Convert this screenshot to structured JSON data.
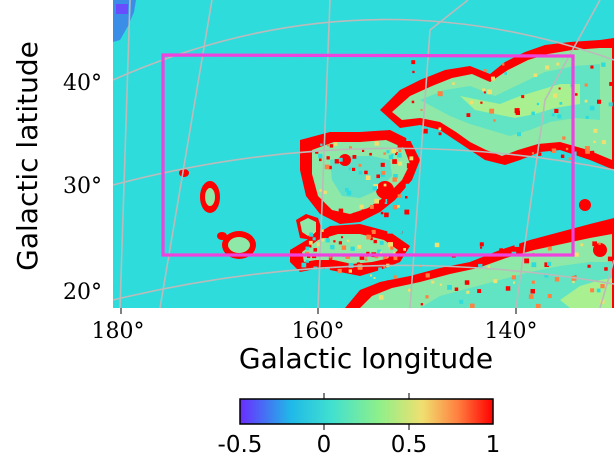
{
  "chart_data": {
    "type": "heatmap",
    "title": "",
    "xlabel": "Galactic longitude",
    "ylabel": "Galactic latitude",
    "x_ticks": [
      {
        "value": 180,
        "label": "180°"
      },
      {
        "value": 160,
        "label": "160°"
      },
      {
        "value": 140,
        "label": "140°"
      }
    ],
    "y_ticks": [
      {
        "value": 40,
        "label": "40°"
      },
      {
        "value": 30,
        "label": "30°"
      },
      {
        "value": 20,
        "label": "20°"
      }
    ],
    "xlim": [
      181,
      130
    ],
    "ylim": [
      18.5,
      47.5
    ],
    "grid": true,
    "region_box": {
      "l_min": 134,
      "l_max": 176,
      "b_min": 23.5,
      "b_max": 42.5,
      "color": "#ee44dd"
    },
    "colorbar": {
      "range": [
        -0.5,
        1
      ],
      "ticks": [
        {
          "value": -0.5,
          "label": "-0.5"
        },
        {
          "value": 0,
          "label": "0"
        },
        {
          "value": 0.5,
          "label": "0.5"
        },
        {
          "value": 1,
          "label": "1"
        }
      ],
      "colormap": [
        "#6a2cff",
        "#20b8e8",
        "#40e0d0",
        "#8ef08a",
        "#f0e070",
        "#ff8040",
        "#ff0000"
      ]
    },
    "colors": {
      "background_value": "#2edcdc",
      "high_value": "#ff0000",
      "grid": "#bbbbbb"
    }
  }
}
